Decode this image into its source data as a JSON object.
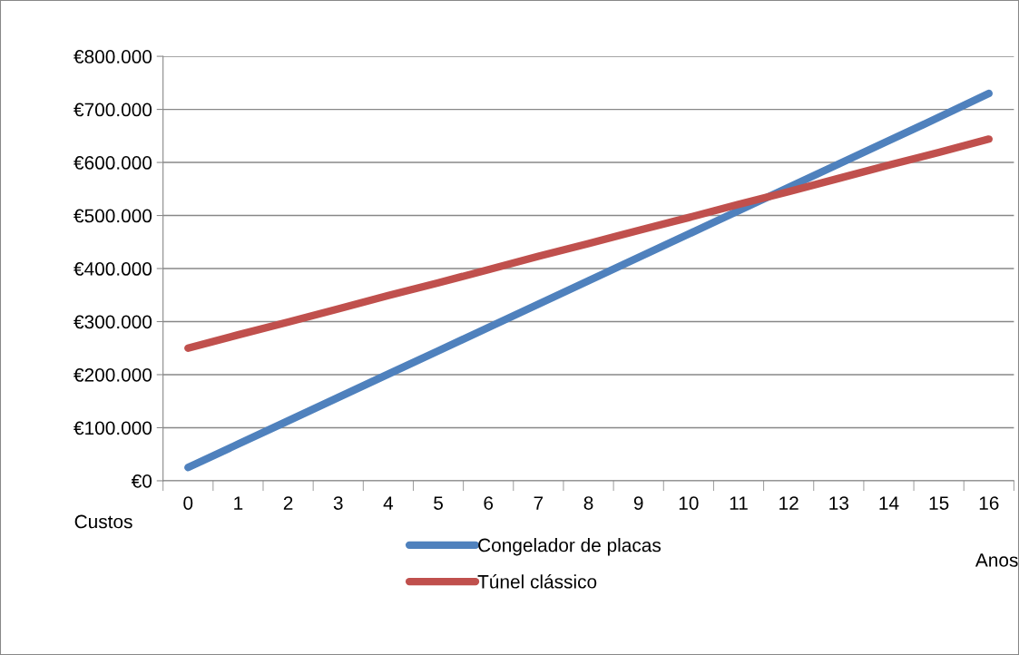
{
  "chart_data": {
    "type": "line",
    "xlabel": "Anos",
    "ylabel": "Custos",
    "categories": [
      "0",
      "1",
      "2",
      "3",
      "4",
      "5",
      "6",
      "7",
      "8",
      "9",
      "10",
      "11",
      "12",
      "13",
      "14",
      "15",
      "16"
    ],
    "series": [
      {
        "name": "Congelador de placas",
        "color": "#4f81bd",
        "values": [
          25000,
          69000,
          113000,
          157000,
          201000,
          245000,
          289000,
          333000,
          377000,
          421000,
          465000,
          509000,
          553000,
          597000,
          641000,
          685000,
          730000
        ]
      },
      {
        "name": "Túnel clássico",
        "color": "#c0504d",
        "values": [
          250000,
          275000,
          299000,
          324000,
          349000,
          373000,
          398000,
          423000,
          447000,
          472000,
          496000,
          521000,
          545000,
          570000,
          595000,
          619000,
          644000
        ]
      }
    ],
    "ylim": [
      0,
      800000
    ],
    "yticks": [
      {
        "value": 0,
        "label": "€0"
      },
      {
        "value": 100000,
        "label": "€100.000"
      },
      {
        "value": 200000,
        "label": "€200.000"
      },
      {
        "value": 300000,
        "label": "€300.000"
      },
      {
        "value": 400000,
        "label": "€400.000"
      },
      {
        "value": 500000,
        "label": "€500.000"
      },
      {
        "value": 600000,
        "label": "€600.000"
      },
      {
        "value": 700000,
        "label": "€700.000"
      },
      {
        "value": 800000,
        "label": "€800.000"
      }
    ],
    "grid": "y",
    "legend": "bottom",
    "marker": "none",
    "line_style": "solid"
  }
}
